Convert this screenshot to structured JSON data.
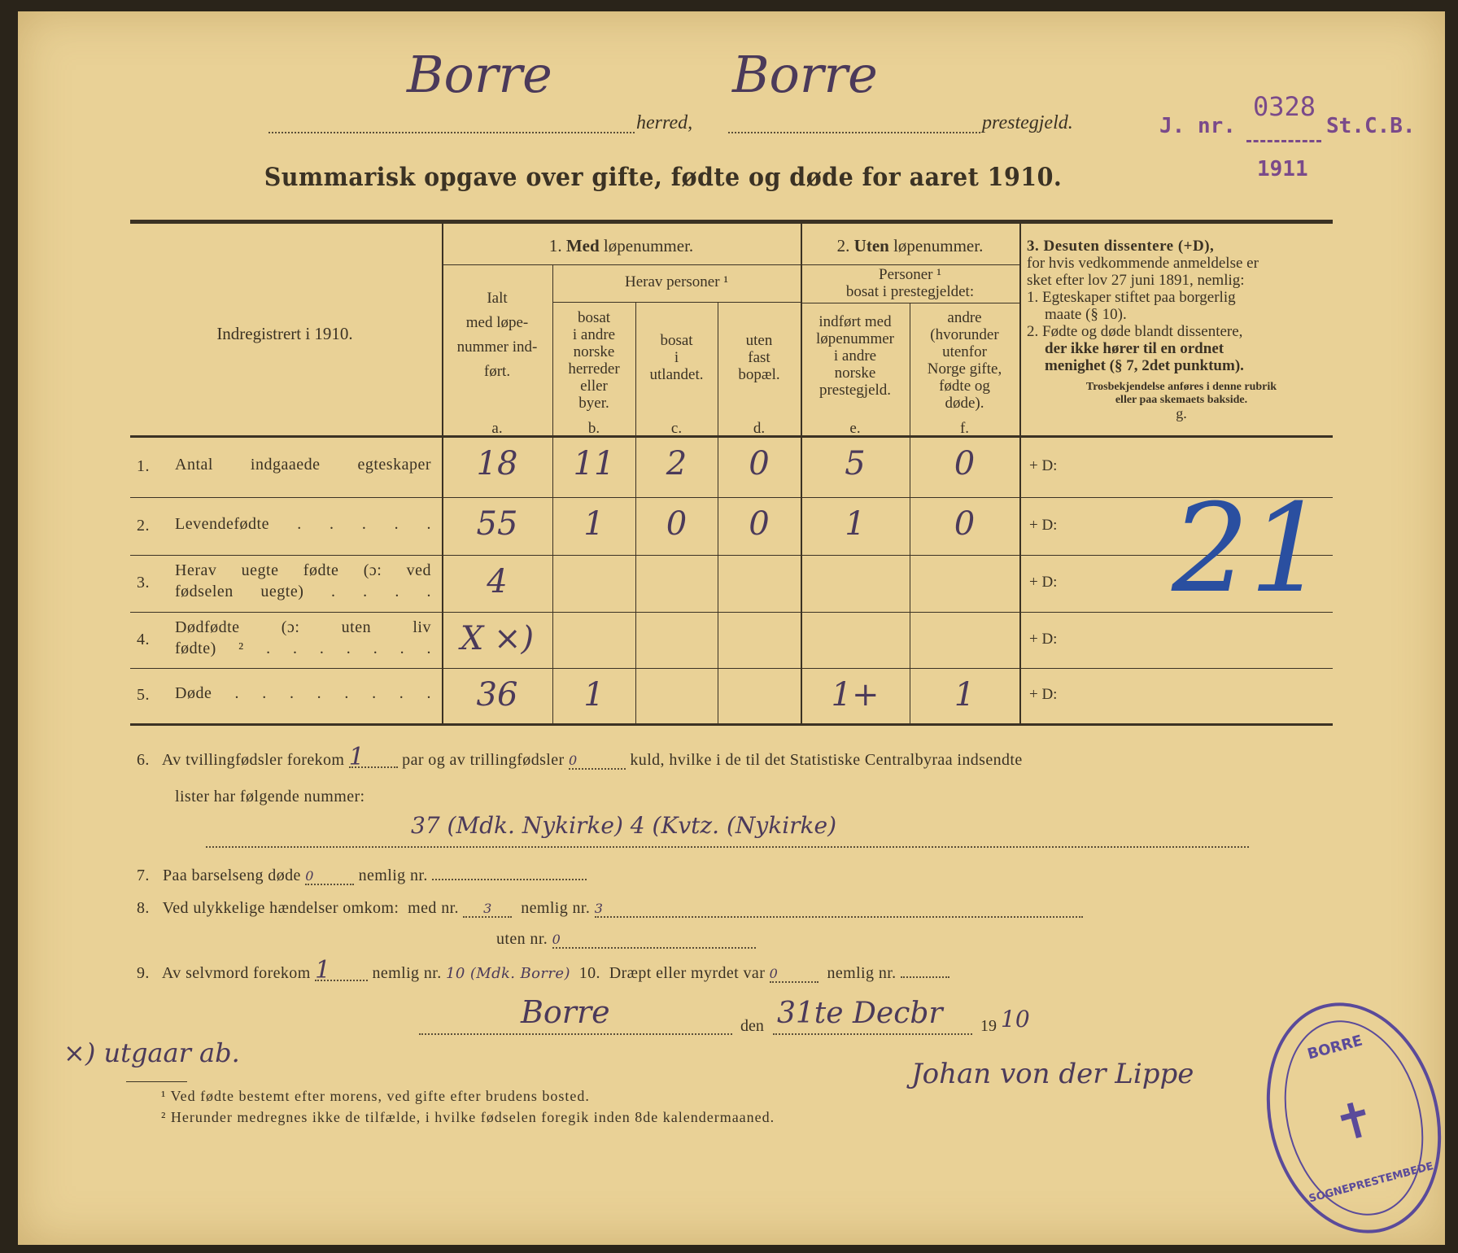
{
  "header": {
    "herred_value": "Borre",
    "herred_label": "herred,",
    "prestegjeld_value": "Borre",
    "prestegjeld_label": "prestegjeld.",
    "journal_stamp": {
      "prefix": "J. nr.",
      "number": "0328",
      "suffix": "St.C.B.",
      "year": "1911",
      "color": "#7a4a8a"
    },
    "title": "Summarisk opgave over gifte, fødte og døde for aaret 1910."
  },
  "table": {
    "row_header": "Indregistrert i 1910.",
    "group1": {
      "num": "1.",
      "bold": "Med",
      "rest": "løpenummer."
    },
    "group1_sub": "Herav personer ¹",
    "col_a": {
      "lines": [
        "Ialt",
        "med løpe-",
        "nummer ind-",
        "ført."
      ],
      "letter": "a."
    },
    "col_b": {
      "lines": [
        "bosat",
        "i andre",
        "norske",
        "herreder",
        "eller",
        "byer."
      ],
      "letter": "b."
    },
    "col_c": {
      "lines": [
        "bosat",
        "i",
        "utlandet."
      ],
      "letter": "c."
    },
    "col_d": {
      "lines": [
        "uten",
        "fast",
        "bopæl."
      ],
      "letter": "d."
    },
    "group2": {
      "num": "2.",
      "bold": "Uten",
      "rest": "løpenummer."
    },
    "group2_sub": [
      "Personer ¹",
      "bosat i prestegjeldet:"
    ],
    "col_e": {
      "lines": [
        "indført med",
        "løpenummer",
        "i andre",
        "norske",
        "prestegjeld."
      ],
      "letter": "e."
    },
    "col_f": {
      "lines": [
        "andre",
        "(hvorunder",
        "utenfor",
        "Norge gifte,",
        "fødte og",
        "døde)."
      ],
      "letter": "f."
    },
    "col_g": {
      "head": "3. Desuten dissentere (+D),",
      "lines": [
        "for hvis vedkommende anmeldelse er",
        "sket efter lov 27 juni 1891, nemlig:",
        "1. Egteskaper stiftet paa borgerlig",
        "maate (§ 10).",
        "2. Fødte og døde blandt dissentere,",
        "der ikke hører til en ordnet",
        "menighet (§ 7, 2det punktum)."
      ],
      "note": [
        "Trosbekjendelse anføres i denne rubrik",
        "eller paa skemaets bakside."
      ],
      "letter": "g.",
      "handwritten_overlay": "21",
      "overlay_color": "#2a4fa0"
    },
    "rows": [
      {
        "num": "1.",
        "label": [
          "Antal indgaaede egteskaper"
        ],
        "a": "18",
        "b": "11",
        "c": "2",
        "d": "0",
        "e": "5",
        "f": "0",
        "g": "+ D:"
      },
      {
        "num": "2.",
        "label": [
          "Levendefødte . . . . ."
        ],
        "a": "55",
        "b": "1",
        "c": "0",
        "d": "0",
        "e": "1",
        "f": "0",
        "g": "+ D:"
      },
      {
        "num": "3.",
        "label": [
          "Herav uegte fødte (ɔ: ved",
          "fødselen uegte) . . . ."
        ],
        "a": "4",
        "b": "",
        "c": "",
        "d": "",
        "e": "",
        "f": "",
        "g": "+ D:"
      },
      {
        "num": "4.",
        "label": [
          "Dødfødte (ɔ: uten liv",
          "fødte) ² . . . . . . ."
        ],
        "a": "X ×)",
        "b": "",
        "c": "",
        "d": "",
        "e": "",
        "f": "",
        "g": "+ D:"
      },
      {
        "num": "5.",
        "label": [
          "Døde . . . . . . . ."
        ],
        "a": "36",
        "b": "1",
        "c": "",
        "d": "",
        "e": "1+",
        "f": "1",
        "g": "+ D:"
      }
    ]
  },
  "items": {
    "i6_num": "6.",
    "i6_a": "Av tvillingfødsler forekom",
    "i6_twins": "1",
    "i6_b": "par og av trillingfødsler",
    "i6_triplets": "0",
    "i6_c": "kuld, hvilke i de til det Statistiske Centralbyraa indsendte",
    "i6_d": "lister har følgende nummer:",
    "i6_numbers": "37 (Mdk. Nykirke) 4 (Kvtz. (Nykirke)",
    "i7_num": "7.",
    "i7_a": "Paa barselseng døde",
    "i7_val": "0",
    "i7_b": "nemlig nr.",
    "i8_num": "8.",
    "i8_a": "Ved ulykkelige hændelser omkom:",
    "i8_med": "med nr.",
    "i8_med_val": "3",
    "i8_b": "nemlig nr.",
    "i8_nemlig_val": "3",
    "i8_uten": "uten nr.",
    "i8_uten_val": "0",
    "i9_num": "9.",
    "i9_a": "Av selvmord forekom",
    "i9_val": "1",
    "i9_b": "nemlig nr.",
    "i9_nr": "10 (Mdk. Borre)",
    "i10_num": "10.",
    "i10_a": "Dræpt eller myrdet var",
    "i10_val": "0",
    "i10_b": "nemlig nr."
  },
  "signature": {
    "place": "Borre",
    "den": "den",
    "date": "31te Decbr",
    "year_print": "19",
    "year_hand": "10",
    "signer": "Johan von der Lippe",
    "note": "×) utgaar ab.",
    "seal_top": "BORRE",
    "seal_bottom": "SOGNEPRESTEMBEDE",
    "seal_color": "#5a4a9a"
  },
  "footnotes": [
    "¹ Ved fødte bestemt efter morens, ved gifte efter brudens bosted.",
    "² Herunder medregnes ikke de tilfælde, i hvilke fødselen foregik inden 8de kalendermaaned."
  ]
}
